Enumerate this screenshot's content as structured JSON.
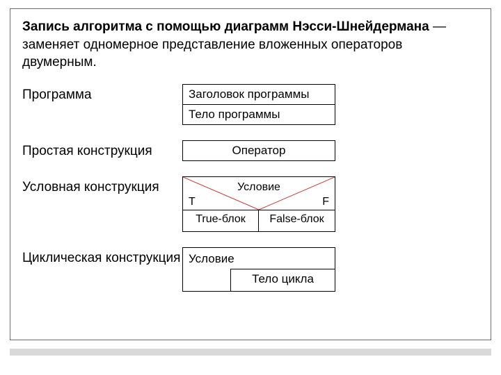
{
  "colors": {
    "text": "#000000",
    "frame_border": "#6b6b6b",
    "footer_fill": "#d9d9d9",
    "box_border": "#000000",
    "triangle_stroke": "#cc3333",
    "background": "#ffffff"
  },
  "typography": {
    "heading_fontsize": 19,
    "label_fontsize": 19,
    "cell_fontsize": 17,
    "cond_fontsize": 16
  },
  "heading": {
    "bold": "Запись алгоритма с помощью диаграмм Нэсси-Шнейдермана",
    "dash": " — ",
    "rest": "заменяет одномерное представление вложенных операторов двумерным."
  },
  "rows": {
    "program": {
      "label": "Программа",
      "cells": [
        "Заголовок программы",
        "Тело программы"
      ]
    },
    "simple": {
      "label": "Простая конструкция",
      "cell": "Оператор"
    },
    "conditional": {
      "label": "Условная конструкция",
      "condition": "Условие",
      "true_mark": "T",
      "false_mark": "F",
      "true_block": "True-блок",
      "false_block": "False-блок",
      "triangle": {
        "stroke": "#cc3333",
        "stroke_width": 1,
        "p1": [
          0,
          0
        ],
        "apex": [
          109,
          46
        ],
        "p2": [
          218,
          0
        ]
      }
    },
    "loop": {
      "label": "Циклическая конструкция",
      "condition": "Условие",
      "body": "Тело цикла"
    }
  }
}
